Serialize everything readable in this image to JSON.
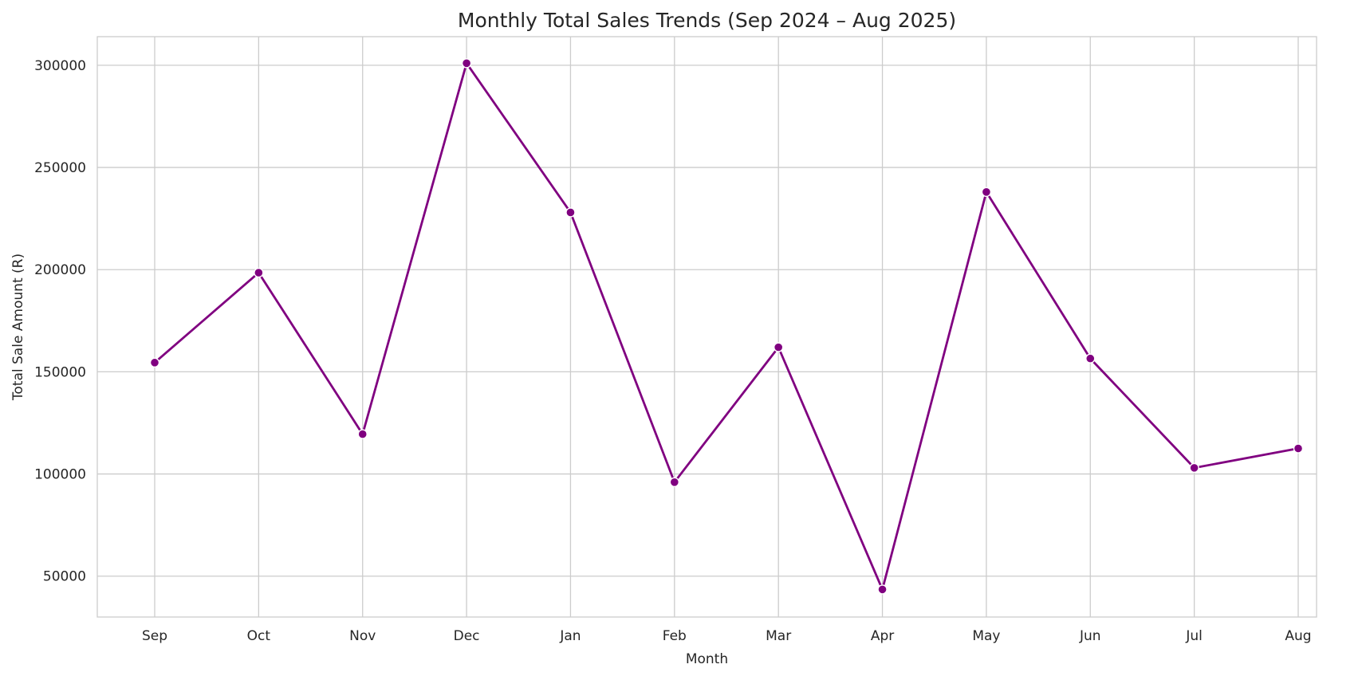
{
  "chart_data": {
    "type": "line",
    "title": "Monthly Total Sales Trends (Sep 2024 – Aug 2025)",
    "xlabel": "Month",
    "ylabel": "Total Sale Amount (R)",
    "categories": [
      "Sep",
      "Oct",
      "Nov",
      "Dec",
      "Jan",
      "Feb",
      "Mar",
      "Apr",
      "May",
      "Jun",
      "Jul",
      "Aug"
    ],
    "series": [
      {
        "values": [
          154500,
          198500,
          119500,
          301000,
          228000,
          96000,
          162000,
          43500,
          238000,
          156500,
          103000,
          112500
        ],
        "color": "#800080"
      }
    ],
    "ylim": [
      30000,
      314000
    ],
    "yticks": [
      50000,
      100000,
      150000,
      200000,
      250000,
      300000
    ],
    "ytick_labels": [
      "50000",
      "100000",
      "150000",
      "200000",
      "250000",
      "300000"
    ],
    "grid": true,
    "legend": false
  }
}
